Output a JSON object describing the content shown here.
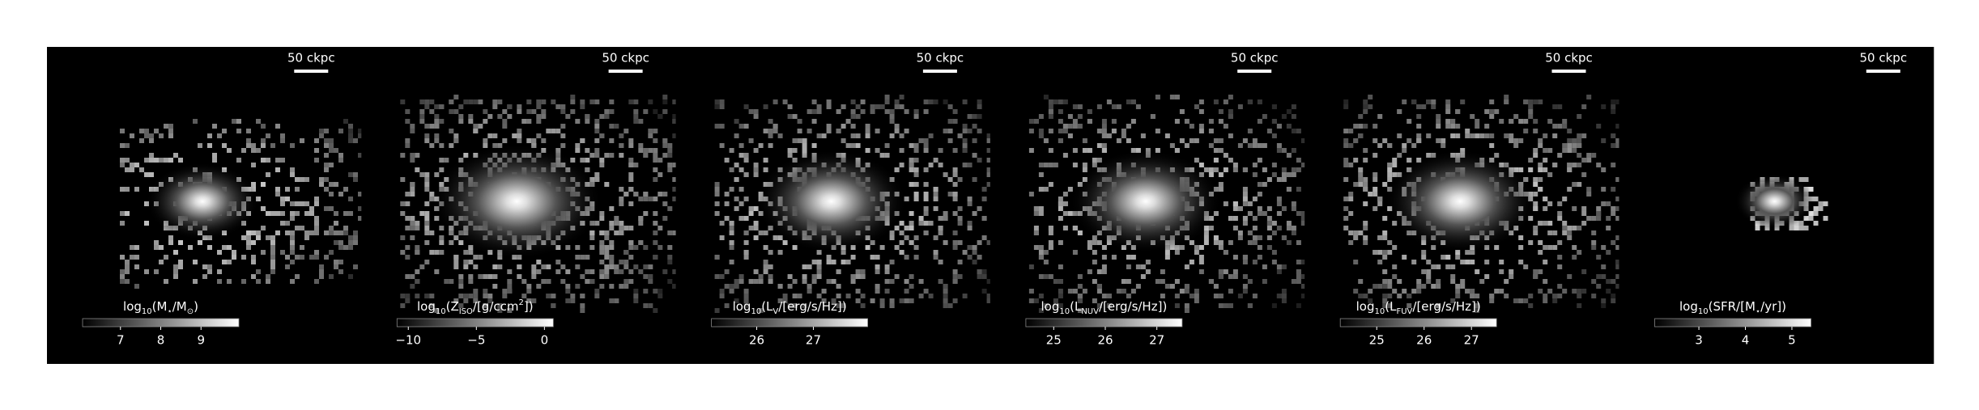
{
  "chart_data": [
    {
      "type": "image",
      "scalebar": "50 ckpc",
      "spread": 1.0,
      "label": [
        {
          "text": "log"
        },
        {
          "text": "10",
          "sub": true
        },
        {
          "text": "(M"
        },
        {
          "text": "⋆",
          "sub": true
        },
        {
          "text": "/M"
        },
        {
          "text": "⊙",
          "sub": true
        },
        {
          "text": ")"
        }
      ],
      "clim": [
        6.06,
        9.94
      ],
      "cticks": [
        7,
        8,
        9
      ]
    },
    {
      "type": "image",
      "scalebar": "50 ckpc",
      "spread": 2.2,
      "label": [
        {
          "text": "log"
        },
        {
          "text": "10",
          "sub": true
        },
        {
          "text": "(Z"
        },
        {
          "text": "ISO",
          "sub": true
        },
        {
          "text": "/[g/ccm"
        },
        {
          "text": "2",
          "sup": true
        },
        {
          "text": "])"
        }
      ],
      "clim": [
        -10.83,
        0.65
      ],
      "cticks": [
        {
          "value": -10,
          "label": "−10"
        },
        {
          "value": -5,
          "label": "−5"
        },
        0
      ]
    },
    {
      "type": "image",
      "scalebar": "50 ckpc",
      "spread": 1.8,
      "label": [
        {
          "text": "log"
        },
        {
          "text": "10",
          "sub": true
        },
        {
          "text": "(L"
        },
        {
          "text": "V",
          "sub": true
        },
        {
          "text": "/[erg/s/Hz])"
        }
      ],
      "clim": [
        25.2,
        27.96
      ],
      "cticks": [
        26,
        27
      ]
    },
    {
      "type": "image",
      "scalebar": "50 ckpc",
      "spread": 1.8,
      "label": [
        {
          "text": "log"
        },
        {
          "text": "10",
          "sub": true
        },
        {
          "text": "(L"
        },
        {
          "text": "NUV",
          "sub": true
        },
        {
          "text": "/[erg/s/Hz])"
        }
      ],
      "clim": [
        24.46,
        27.49
      ],
      "cticks": [
        25,
        26,
        27
      ]
    },
    {
      "type": "image",
      "scalebar": "50 ckpc",
      "spread": 1.8,
      "label": [
        {
          "text": "log"
        },
        {
          "text": "10",
          "sub": true
        },
        {
          "text": "(L"
        },
        {
          "text": "FUV",
          "sub": true
        },
        {
          "text": "/[erg/s/Hz])"
        }
      ],
      "clim": [
        24.23,
        27.53
      ],
      "cticks": [
        25,
        26,
        27
      ]
    },
    {
      "type": "image",
      "scalebar": "50 ckpc",
      "spread": 0.3,
      "label": [
        {
          "text": "log"
        },
        {
          "text": "10",
          "sub": true
        },
        {
          "text": "(SFR/[M"
        },
        {
          "text": "⋆",
          "sub": true
        },
        {
          "text": "/yr])"
        }
      ],
      "clim": [
        2.05,
        5.41
      ],
      "cticks": [
        3,
        4,
        5
      ]
    }
  ]
}
